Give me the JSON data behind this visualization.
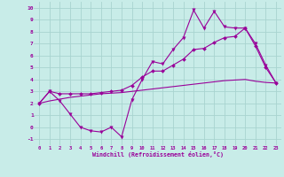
{
  "xlabel": "Windchill (Refroidissement éolien,°C)",
  "bg_color": "#c8ece8",
  "grid_color": "#a8d4d0",
  "line_color": "#990099",
  "xlim": [
    -0.5,
    23.5
  ],
  "ylim": [
    -1.5,
    10.5
  ],
  "xticks": [
    0,
    1,
    2,
    3,
    4,
    5,
    6,
    7,
    8,
    9,
    10,
    11,
    12,
    13,
    14,
    15,
    16,
    17,
    18,
    19,
    20,
    21,
    22,
    23
  ],
  "yticks": [
    -1,
    0,
    1,
    2,
    3,
    4,
    5,
    6,
    7,
    8,
    9,
    10
  ],
  "line1_x": [
    0,
    1,
    2,
    3,
    4,
    5,
    6,
    7,
    8,
    9,
    10,
    11,
    12,
    13,
    14,
    15,
    16,
    17,
    18,
    19,
    20,
    21,
    22,
    23
  ],
  "line1_y": [
    2.0,
    3.0,
    2.2,
    1.1,
    0.0,
    -0.3,
    -0.4,
    0.0,
    -0.8,
    2.3,
    4.0,
    5.5,
    5.3,
    6.5,
    7.5,
    9.8,
    8.3,
    9.7,
    8.4,
    8.3,
    8.3,
    7.0,
    5.2,
    3.7
  ],
  "line2_x": [
    0,
    1,
    2,
    3,
    4,
    5,
    6,
    7,
    8,
    9,
    10,
    11,
    12,
    13,
    14,
    15,
    16,
    17,
    18,
    19,
    20,
    21,
    22,
    23
  ],
  "line2_y": [
    2.0,
    3.0,
    2.8,
    2.8,
    2.8,
    2.8,
    2.9,
    3.0,
    3.1,
    3.5,
    4.2,
    4.7,
    4.7,
    5.2,
    5.7,
    6.5,
    6.6,
    7.1,
    7.5,
    7.6,
    8.3,
    6.8,
    5.0,
    3.7
  ],
  "line3_x": [
    0,
    1,
    2,
    3,
    4,
    5,
    6,
    7,
    8,
    9,
    10,
    11,
    12,
    13,
    14,
    15,
    16,
    17,
    18,
    19,
    20,
    21,
    22,
    23
  ],
  "line3_y": [
    2.0,
    2.2,
    2.35,
    2.5,
    2.6,
    2.7,
    2.8,
    2.85,
    2.9,
    3.0,
    3.1,
    3.2,
    3.3,
    3.4,
    3.5,
    3.6,
    3.7,
    3.8,
    3.9,
    3.95,
    4.0,
    3.85,
    3.75,
    3.7
  ]
}
